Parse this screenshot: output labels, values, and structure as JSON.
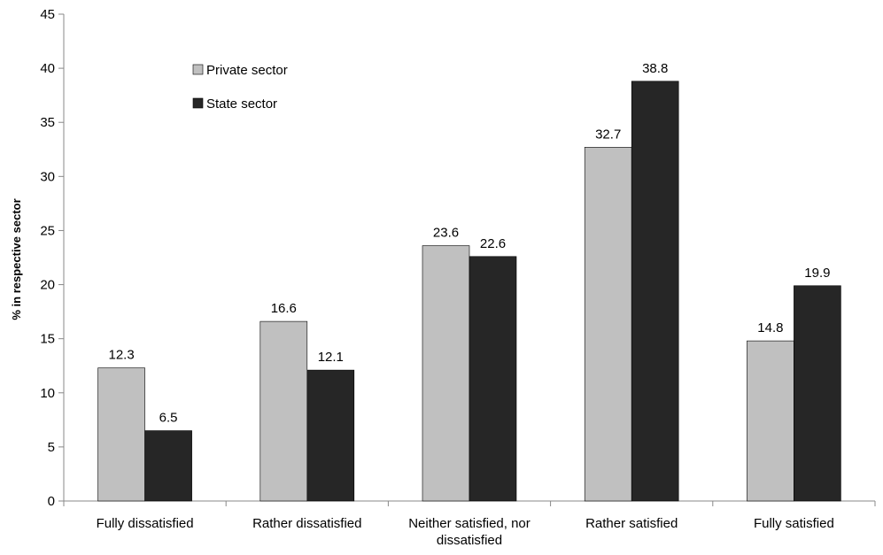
{
  "chart_data": {
    "type": "bar",
    "title": "",
    "xlabel": "",
    "ylabel": "% in respective sector",
    "ylim": [
      0,
      45
    ],
    "yticks": [
      0,
      5,
      10,
      15,
      20,
      25,
      30,
      35,
      40,
      45
    ],
    "grid": false,
    "legend_position": "top-left",
    "categories": [
      [
        "Fully dissatisfied"
      ],
      [
        "Rather dissatisfied"
      ],
      [
        "Neither satisfied, nor",
        "dissatisfied"
      ],
      [
        "Rather satisfied"
      ],
      [
        "Fully satisfied"
      ]
    ],
    "series": [
      {
        "name": "Private sector",
        "color": "#c0c0c0",
        "values": [
          12.3,
          16.6,
          23.6,
          32.7,
          14.8
        ]
      },
      {
        "name": "State sector",
        "color": "#262626",
        "values": [
          6.5,
          12.1,
          22.6,
          38.8,
          19.9
        ]
      }
    ]
  }
}
